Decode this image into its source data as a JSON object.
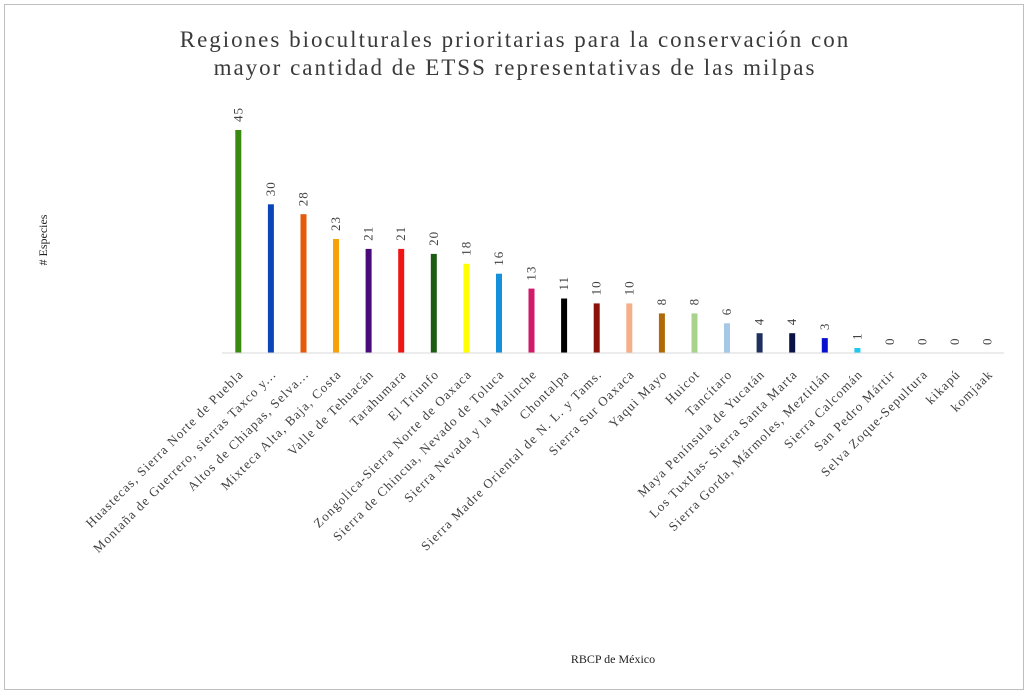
{
  "chart_data": {
    "type": "bar",
    "title_lines": [
      "Regiones bioculturales prioritarias para la conservación con",
      "mayor cantidad de ETSS representativas de las milpas"
    ],
    "xlabel": "RBCP de México",
    "ylabel": "# Especies",
    "ylim": [
      0,
      45
    ],
    "grid": false,
    "legend": "none",
    "categories": [
      "Huastecas, Sierra Norte de Puebla",
      "Montaña de Guerrero, sierras Taxco y...",
      "Altos de Chiapas, Selva...",
      "Mixteca Alta, Baja, Costa",
      "Valle de Tehuacán",
      "Tarahumara",
      "El Triunfo",
      "Zongolica-Sierra Norte de Oaxaca",
      "Sierra de Chincua, Nevado de Toluca",
      "Sierra Nevada y la Malinche",
      "Chontalpa",
      "Sierra Madre Oriental de N. L. y Tams.",
      "Sierra Sur Oaxaca",
      "Yaqui Mayo",
      "Huicot",
      "Tancítaro",
      "Maya Península de Yucatán",
      "Los Tuxtlas- Sierra Santa Marta",
      "Sierra Gorda, Mármoles, Meztitlán",
      "Sierra Calcomán",
      "San Pedro Mártir",
      "Selva Zoque-Sepultura",
      "kikapú",
      "komjaak"
    ],
    "values": [
      45,
      30,
      28,
      23,
      21,
      21,
      20,
      18,
      16,
      13,
      11,
      10,
      10,
      8,
      8,
      6,
      4,
      4,
      3,
      1,
      0,
      0,
      0,
      0
    ],
    "colors": [
      "#3a8a12",
      "#0b46b8",
      "#e35a0c",
      "#f7a20d",
      "#4a0b7a",
      "#f01414",
      "#1a5c12",
      "#ffff00",
      "#1591dc",
      "#d01a6a",
      "#000000",
      "#8a1208",
      "#f5b08a",
      "#b06a08",
      "#a9d38c",
      "#a4c8e6",
      "#1f3060",
      "#0a1444",
      "#0a10d0",
      "#1fc8ee",
      "#ffffff",
      "#ffffff",
      "#ffffff",
      "#ffffff"
    ]
  }
}
